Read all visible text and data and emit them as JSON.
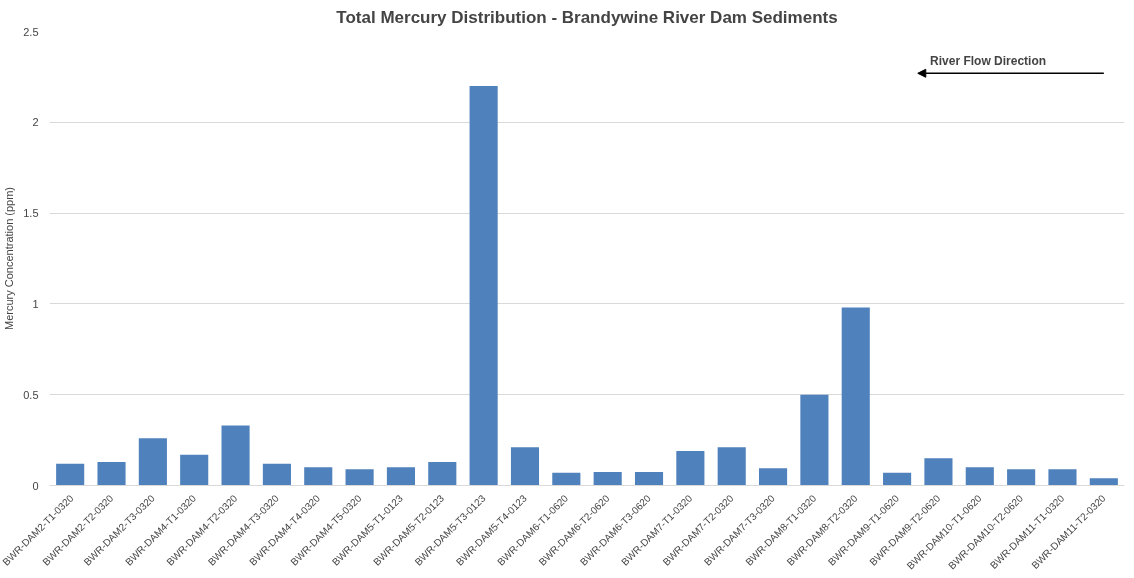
{
  "chart_data": {
    "type": "bar",
    "title": "Total Mercury Distribution - Brandywine River Dam Sediments",
    "ylabel": "Mercury Concentration (ppm)",
    "categories": [
      "BWR-DAM2-T1-0320",
      "BWR-DAM2-T2-0320",
      "BWR-DAM2-T3-0320",
      "BWR-DAM4-T1-0320",
      "BWR-DAM4-T2-0320",
      "BWR-DAM4-T3-0320",
      "BWR-DAM4-T4-0320",
      "BWR-DAM4-T5-0320",
      "BWR-DAM5-T1-0123",
      "BWR-DAM5-T2-0123",
      "BWR-DAM5-T3-0123",
      "BWR-DAM5-T4-0123",
      "BWR-DAM6-T1-0620",
      "BWR-DAM6-T2-0620",
      "BWR-DAM6-T3-0620",
      "BWR-DAM7-T1-0320",
      "BWR-DAM7-T2-0320",
      "BWR-DAM7-T3-0320",
      "BWR-DAM8-T1-0320",
      "BWR-DAM8-T2-0320",
      "BWR-DAM9-T1-0620",
      "BWR-DAM9-T2-0620",
      "BWR-DAM10-T1-0620",
      "BWR-DAM10-T2-0620",
      "BWR-DAM11-T1-0320",
      "BWR-DAM11-T2-0320"
    ],
    "values": [
      0.12,
      0.13,
      0.26,
      0.17,
      0.33,
      0.12,
      0.1,
      0.09,
      0.1,
      0.13,
      2.2,
      0.21,
      0.07,
      0.075,
      0.075,
      0.19,
      0.21,
      0.095,
      0.5,
      0.98,
      0.07,
      0.15,
      0.1,
      0.09,
      0.09,
      0.04
    ],
    "color": "#4f81bd",
    "ylim": [
      0,
      2.5
    ],
    "yticks": [
      0,
      0.5,
      1,
      1.5,
      2,
      2.5
    ],
    "grid": "y",
    "annotations": [
      "River Flow Direction"
    ]
  }
}
